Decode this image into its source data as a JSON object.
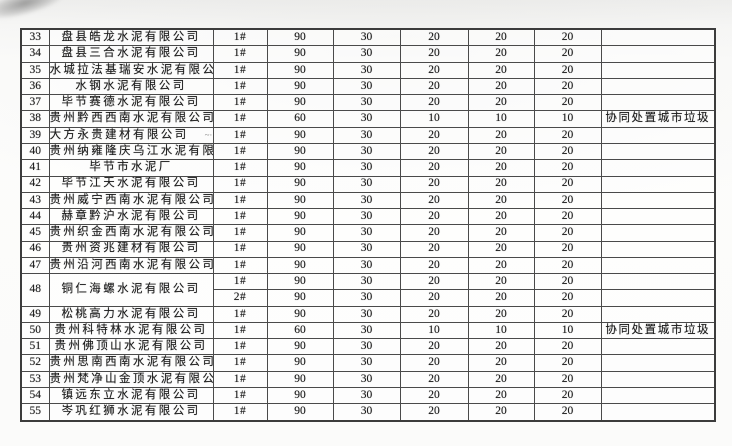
{
  "page": {
    "background": "#f8f8f7",
    "ink": "#1c1c1c",
    "grid_line": "#4a4a4a",
    "remark_note": "协同处置城市垃圾"
  },
  "table": {
    "rows": [
      {
        "no": "33",
        "name": "盘县皓龙水泥有限公司",
        "cells": [
          "1#",
          "90",
          "30",
          "20",
          "20",
          "20"
        ],
        "remark": ""
      },
      {
        "no": "34",
        "name": "盘县三合水泥有限公司",
        "cells": [
          "1#",
          "90",
          "30",
          "20",
          "20",
          "20"
        ],
        "remark": ""
      },
      {
        "no": "35",
        "name": "水城拉法基瑞安水泥有限公司",
        "cells": [
          "1#",
          "90",
          "30",
          "20",
          "20",
          "20"
        ],
        "remark": ""
      },
      {
        "no": "36",
        "name": "水钢水泥有限公司",
        "cells": [
          "1#",
          "90",
          "30",
          "20",
          "20",
          "20"
        ],
        "remark": ""
      },
      {
        "no": "37",
        "name": "毕节赛德水泥有限公司",
        "cells": [
          "1#",
          "90",
          "30",
          "20",
          "20",
          "20"
        ],
        "remark": ""
      },
      {
        "no": "38",
        "name": "贵州黔西西南水泥有限公司",
        "cells": [
          "1#",
          "60",
          "30",
          "10",
          "10",
          "10"
        ],
        "remark": "协同处置城市垃圾"
      },
      {
        "no": "39",
        "name": "大方永贵建材有限公司",
        "mark": "~·",
        "cells": [
          "1#",
          "90",
          "30",
          "20",
          "20",
          "20"
        ],
        "remark": ""
      },
      {
        "no": "40",
        "name": "贵州纳雍隆庆乌江水泥有限公司",
        "cells": [
          "1#",
          "90",
          "30",
          "20",
          "20",
          "20"
        ],
        "remark": ""
      },
      {
        "no": "41",
        "name": "毕节市水泥厂",
        "cells": [
          "1#",
          "90",
          "30",
          "20",
          "20",
          "20"
        ],
        "remark": ""
      },
      {
        "no": "42",
        "name": "毕节江天水泥有限公司",
        "cells": [
          "1#",
          "90",
          "30",
          "20",
          "20",
          "20"
        ],
        "remark": ""
      },
      {
        "no": "43",
        "name": "贵州威宁西南水泥有限公司",
        "cells": [
          "1#",
          "90",
          "30",
          "20",
          "20",
          "20"
        ],
        "remark": ""
      },
      {
        "no": "44",
        "name": "赫章黔沪水泥有限公司",
        "cells": [
          "1#",
          "90",
          "30",
          "20",
          "20",
          "20"
        ],
        "remark": ""
      },
      {
        "no": "45",
        "name": "贵州织金西南水泥有限公司",
        "cells": [
          "1#",
          "90",
          "30",
          "20",
          "20",
          "20"
        ],
        "remark": ""
      },
      {
        "no": "46",
        "name": "贵州资兆建材有限公司",
        "cells": [
          "1#",
          "90",
          "30",
          "20",
          "20",
          "20"
        ],
        "remark": ""
      },
      {
        "no": "47",
        "name": "贵州沿河西南水泥有限公司",
        "cells": [
          "1#",
          "90",
          "30",
          "20",
          "20",
          "20"
        ],
        "remark": ""
      },
      {
        "no": "48",
        "name": "铜仁海螺水泥有限公司",
        "subrows": [
          [
            "1#",
            "90",
            "30",
            "20",
            "20",
            "20"
          ],
          [
            "2#",
            "90",
            "30",
            "20",
            "20",
            "20"
          ]
        ],
        "remark": ""
      },
      {
        "no": "49",
        "name": "松桃高力水泥有限公司",
        "cells": [
          "1#",
          "90",
          "30",
          "20",
          "20",
          "20"
        ],
        "remark": ""
      },
      {
        "no": "50",
        "name": "贵州科特林水泥有限公司",
        "cells": [
          "1#",
          "60",
          "30",
          "10",
          "10",
          "10"
        ],
        "remark": "协同处置城市垃圾"
      },
      {
        "no": "51",
        "name": "贵州佛顶山水泥有限公司",
        "cells": [
          "1#",
          "90",
          "30",
          "20",
          "20",
          "20"
        ],
        "remark": ""
      },
      {
        "no": "52",
        "name": "贵州思南西南水泥有限公司",
        "cells": [
          "1#",
          "90",
          "30",
          "20",
          "20",
          "20"
        ],
        "remark": ""
      },
      {
        "no": "53",
        "name": "贵州梵净山金顶水泥有限公司",
        "cells": [
          "1#",
          "90",
          "30",
          "20",
          "20",
          "20"
        ],
        "remark": ""
      },
      {
        "no": "54",
        "name": "镇远东立水泥有限公司",
        "cells": [
          "1#",
          "90",
          "30",
          "20",
          "20",
          "20"
        ],
        "remark": ""
      },
      {
        "no": "55",
        "name": "岑巩红狮水泥有限公司",
        "cells": [
          "1#",
          "90",
          "30",
          "20",
          "20",
          "20"
        ],
        "remark": ""
      }
    ]
  }
}
